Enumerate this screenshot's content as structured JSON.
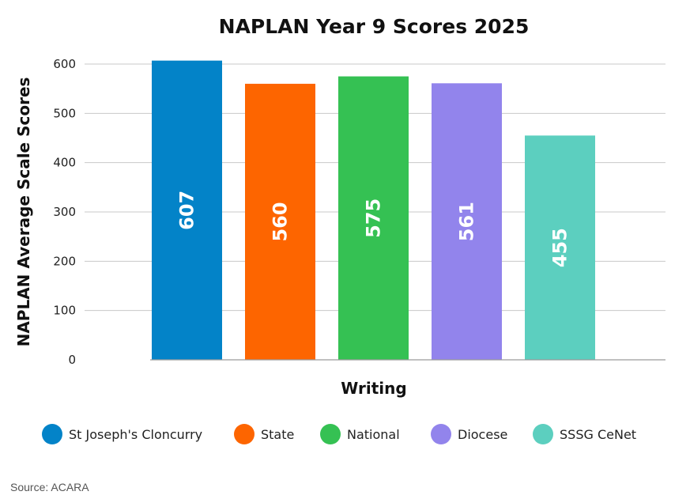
{
  "chart_data": {
    "type": "bar",
    "title": "NAPLAN Year 9 Scores 2025",
    "xlabel": "Writing",
    "ylabel": "NAPLAN Average Scale Scores",
    "categories": [
      "Writing"
    ],
    "series": [
      {
        "name": "St Joseph's Cloncurry",
        "values": [
          607
        ],
        "color": "#0383c8"
      },
      {
        "name": "State",
        "values": [
          560
        ],
        "color": "#fd6500"
      },
      {
        "name": "National",
        "values": [
          575
        ],
        "color": "#35c153"
      },
      {
        "name": "Diocese",
        "values": [
          561
        ],
        "color": "#9284ec"
      },
      {
        "name": "SSSG CeNet",
        "values": [
          455
        ],
        "color": "#5ccfbf"
      }
    ],
    "ylim": [
      0,
      600
    ],
    "yticks": [
      0,
      100,
      200,
      300,
      400,
      500,
      600
    ],
    "grid": true,
    "legend_position": "bottom",
    "data_labels": "inside-rotated"
  },
  "source": "Source: ACARA"
}
